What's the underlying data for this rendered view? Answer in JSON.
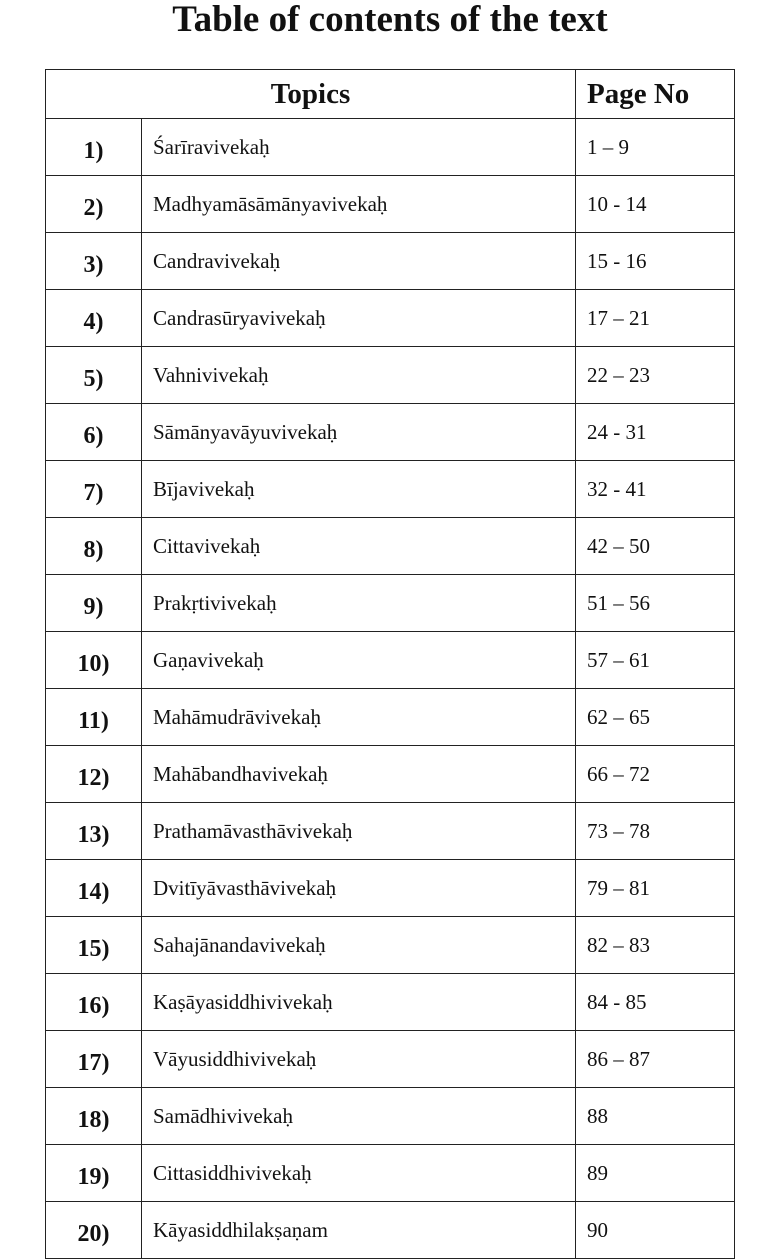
{
  "title": "Table of contents of the text",
  "table": {
    "headers": {
      "topics": "Topics",
      "page_no": "Page No"
    },
    "rows": [
      {
        "num": "1)",
        "topic": "Śarīravivekaḥ",
        "pages": "1 – 9"
      },
      {
        "num": "2)",
        "topic": "Madhyamāsāmānyavivekaḥ",
        "pages": "10 - 14"
      },
      {
        "num": "3)",
        "topic": "Candravivekaḥ",
        "pages": "15 - 16"
      },
      {
        "num": "4)",
        "topic": "Candrasūryavivekaḥ",
        "pages": "17 – 21"
      },
      {
        "num": "5)",
        "topic": "Vahnivivekaḥ",
        "pages": "22 – 23"
      },
      {
        "num": "6)",
        "topic": "Sāmānyavāyuvivekaḥ",
        "pages": "24 - 31"
      },
      {
        "num": "7)",
        "topic": "Bījavivekaḥ",
        "pages": "32 - 41"
      },
      {
        "num": "8)",
        "topic": "Cittavivekaḥ",
        "pages": "42 – 50"
      },
      {
        "num": "9)",
        "topic": "Prakṛtivivekaḥ",
        "pages": "51 – 56"
      },
      {
        "num": "10)",
        "topic": "Gaṇavivekaḥ",
        "pages": "57 – 61"
      },
      {
        "num": "11)",
        "topic": "Mahāmudrāvivekaḥ",
        "pages": "62 – 65"
      },
      {
        "num": "12)",
        "topic": "Mahābandhavivekaḥ",
        "pages": "66 – 72"
      },
      {
        "num": "13)",
        "topic": "Prathamāvasthāvivekaḥ",
        "pages": "73 – 78"
      },
      {
        "num": "14)",
        "topic": "Dvitīyāvasthāvivekaḥ",
        "pages": "79 – 81"
      },
      {
        "num": "15)",
        "topic": "Sahajānandavivekaḥ",
        "pages": "82 – 83"
      },
      {
        "num": "16)",
        "topic": "Kaṣāyasiddhivivekaḥ",
        "pages": "84 - 85"
      },
      {
        "num": "17)",
        "topic": "Vāyusiddhivivekaḥ",
        "pages": "86 – 87"
      },
      {
        "num": "18)",
        "topic": "Samādhivivekaḥ",
        "pages": "88"
      },
      {
        "num": "19)",
        "topic": "Cittasiddhivivekaḥ",
        "pages": "89"
      },
      {
        "num": "20)",
        "topic": "Kāyasiddhilakṣaṇam",
        "pages": "90"
      }
    ]
  }
}
